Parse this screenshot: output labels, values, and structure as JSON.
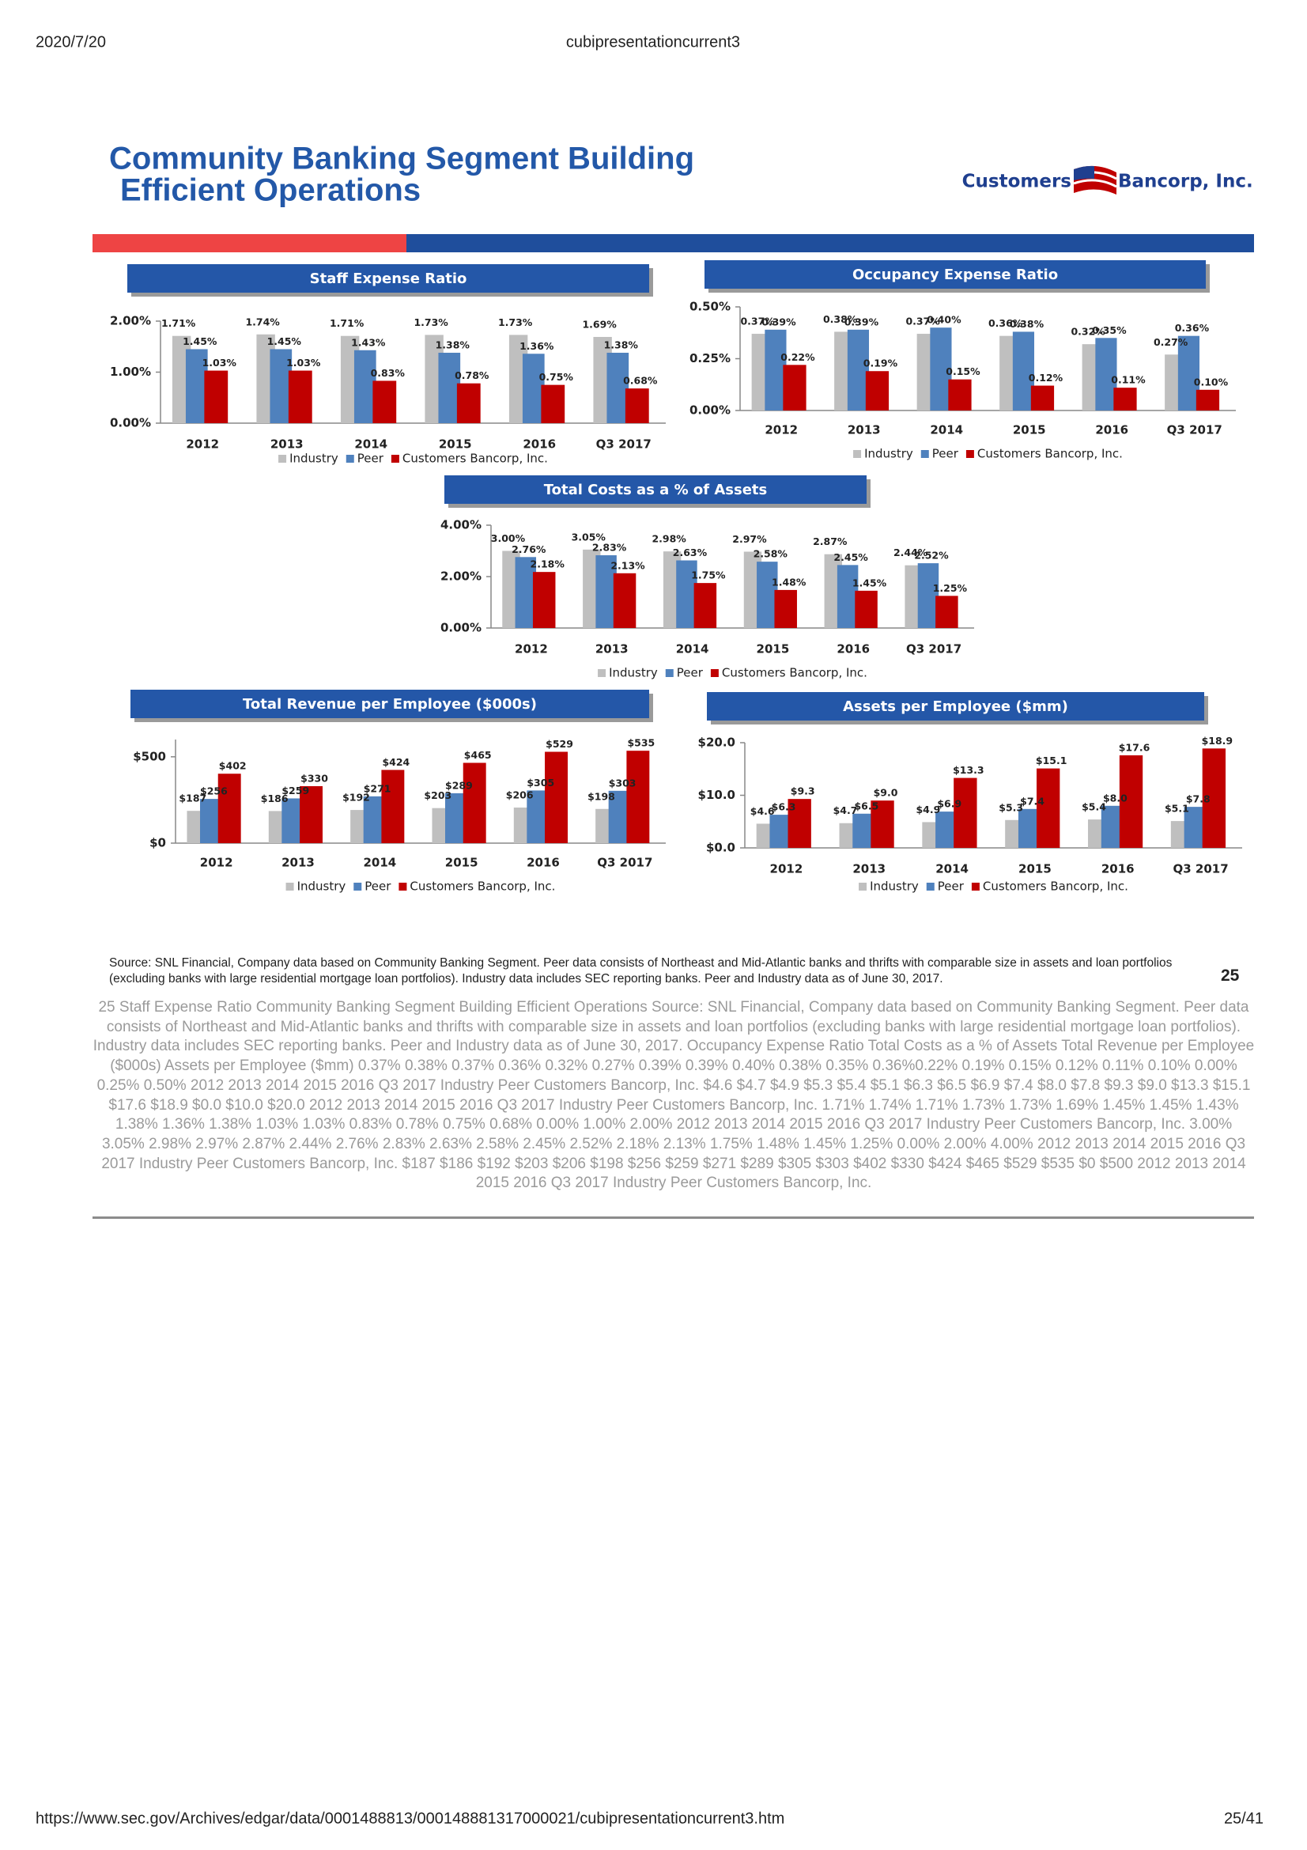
{
  "header": {
    "date": "2020/7/20",
    "doc": "cubipresentationcurrent3"
  },
  "slide": {
    "title": [
      "Community Banking Segment Building",
      "Efficient Operations"
    ],
    "logo": [
      "Customers",
      "Bancorp, Inc."
    ],
    "source": "Source: SNL Financial, Company data based on Community Banking Segment. Peer data consists of Northeast and Mid-Atlantic banks and thrifts with comparable size in assets and loan portfolios (excluding banks with large residential mortgage loan portfolios). Industry data includes SEC reporting banks.  Peer and Industry data as of June 30, 2017.",
    "page_number": "25"
  },
  "chart_data": [
    {
      "type": "bar",
      "title": "Staff Expense Ratio",
      "categories": [
        "2012",
        "2013",
        "2014",
        "2015",
        "2016",
        "Q3 2017"
      ],
      "series": [
        {
          "name": "Industry",
          "color": "#bfbfbf",
          "values": [
            1.71,
            1.74,
            1.71,
            1.73,
            1.73,
            1.69
          ],
          "value_labels": [
            "1.71%",
            "1.74%",
            "1.71%",
            "1.73%",
            "1.73%",
            "1.69%"
          ]
        },
        {
          "name": "Peer",
          "color": "#4f81bd",
          "values": [
            1.45,
            1.45,
            1.43,
            1.38,
            1.36,
            1.38
          ],
          "value_labels": [
            "1.45%",
            "1.45%",
            "1.43%",
            "1.38%",
            "1.36%",
            "1.38%"
          ]
        },
        {
          "name": "Customers Bancorp, Inc.",
          "color": "#c00000",
          "values": [
            1.03,
            1.03,
            0.83,
            0.78,
            0.75,
            0.68
          ],
          "value_labels": [
            "1.03%",
            "1.03%",
            "0.83%",
            "0.78%",
            "0.75%",
            "0.68%"
          ]
        }
      ],
      "ylim": [
        0,
        2
      ],
      "yticks": [
        {
          "value": 0,
          "label": "0.00%"
        },
        {
          "value": 1,
          "label": "1.00%"
        },
        {
          "value": 2,
          "label": "2.00%"
        }
      ]
    },
    {
      "type": "bar",
      "title": "Occupancy Expense Ratio",
      "categories": [
        "2012",
        "2013",
        "2014",
        "2015",
        "2016",
        "Q3 2017"
      ],
      "series": [
        {
          "name": "Industry",
          "color": "#bfbfbf",
          "values": [
            0.37,
            0.38,
            0.37,
            0.36,
            0.32,
            0.27
          ],
          "value_labels": [
            "0.37%",
            "0.38%",
            "0.37%",
            "0.36%",
            "0.32%",
            "0.27%"
          ]
        },
        {
          "name": "Peer",
          "color": "#4f81bd",
          "values": [
            0.39,
            0.39,
            0.4,
            0.38,
            0.35,
            0.36
          ],
          "value_labels": [
            "0.39%",
            "0.39%",
            "0.40%",
            "0.38%",
            "0.35%",
            "0.36%"
          ]
        },
        {
          "name": "Customers Bancorp, Inc.",
          "color": "#c00000",
          "values": [
            0.22,
            0.19,
            0.15,
            0.12,
            0.11,
            0.1
          ],
          "value_labels": [
            "0.22%",
            "0.19%",
            "0.15%",
            "0.12%",
            "0.11%",
            "0.10%"
          ]
        }
      ],
      "ylim": [
        0,
        0.5
      ],
      "yticks": [
        {
          "value": 0,
          "label": "0.00%"
        },
        {
          "value": 0.25,
          "label": "0.25%"
        },
        {
          "value": 0.5,
          "label": "0.50%"
        }
      ]
    },
    {
      "type": "bar",
      "title": "Total Costs as a % of Assets",
      "categories": [
        "2012",
        "2013",
        "2014",
        "2015",
        "2016",
        "Q3 2017"
      ],
      "series": [
        {
          "name": "Industry",
          "color": "#bfbfbf",
          "values": [
            3.0,
            3.05,
            2.98,
            2.97,
            2.87,
            2.44
          ],
          "value_labels": [
            "3.00%",
            "3.05%",
            "2.98%",
            "2.97%",
            "2.87%",
            "2.44%"
          ]
        },
        {
          "name": "Peer",
          "color": "#4f81bd",
          "values": [
            2.76,
            2.83,
            2.63,
            2.58,
            2.45,
            2.52
          ],
          "value_labels": [
            "2.76%",
            "2.83%",
            "2.63%",
            "2.58%",
            "2.45%",
            "2.52%"
          ]
        },
        {
          "name": "Customers Bancorp, Inc.",
          "color": "#c00000",
          "values": [
            2.18,
            2.13,
            1.75,
            1.48,
            1.45,
            1.25
          ],
          "value_labels": [
            "2.18%",
            "2.13%",
            "1.75%",
            "1.48%",
            "1.45%",
            "1.25%"
          ]
        }
      ],
      "ylim": [
        0,
        4
      ],
      "yticks": [
        {
          "value": 0,
          "label": "0.00%"
        },
        {
          "value": 2,
          "label": "2.00%"
        },
        {
          "value": 4,
          "label": "4.00%"
        }
      ]
    },
    {
      "type": "bar",
      "title": "Total Revenue per Employee ($000s)",
      "categories": [
        "2012",
        "2013",
        "2014",
        "2015",
        "2016",
        "Q3 2017"
      ],
      "series": [
        {
          "name": "Industry",
          "color": "#bfbfbf",
          "values": [
            187,
            186,
            192,
            203,
            206,
            198
          ],
          "value_labels": [
            "$187",
            "$186",
            "$192",
            "$203",
            "$206",
            "$198"
          ]
        },
        {
          "name": "Peer",
          "color": "#4f81bd",
          "values": [
            256,
            259,
            271,
            289,
            305,
            303
          ],
          "value_labels": [
            "$256",
            "$259",
            "$271",
            "$289",
            "$305",
            "$303"
          ]
        },
        {
          "name": "Customers Bancorp, Inc.",
          "color": "#c00000",
          "values": [
            402,
            330,
            424,
            465,
            529,
            535
          ],
          "value_labels": [
            "$402",
            "$330",
            "$424",
            "$465",
            "$529",
            "$535"
          ]
        }
      ],
      "ylim": [
        0,
        600
      ],
      "yticks": [
        {
          "value": 0,
          "label": "$0"
        },
        {
          "value": 500,
          "label": "$500"
        }
      ]
    },
    {
      "type": "bar",
      "title": "Assets per Employee ($mm)",
      "categories": [
        "2012",
        "2013",
        "2014",
        "2015",
        "2016",
        "Q3 2017"
      ],
      "series": [
        {
          "name": "Industry",
          "color": "#bfbfbf",
          "values": [
            4.6,
            4.7,
            4.9,
            5.3,
            5.4,
            5.1
          ],
          "value_labels": [
            "$4.6",
            "$4.7",
            "$4.9",
            "$5.3",
            "$5.4",
            "$5.1"
          ]
        },
        {
          "name": "Peer",
          "color": "#4f81bd",
          "values": [
            6.3,
            6.5,
            6.9,
            7.4,
            8.0,
            7.8
          ],
          "value_labels": [
            "$6.3",
            "$6.5",
            "$6.9",
            "$7.4",
            "$8.0",
            "$7.8"
          ]
        },
        {
          "name": "Customers Bancorp, Inc.",
          "color": "#c00000",
          "values": [
            9.3,
            9.0,
            13.3,
            15.1,
            17.6,
            18.9
          ],
          "value_labels": [
            "$9.3",
            "$9.0",
            "$13.3",
            "$15.1",
            "$17.6",
            "$18.9"
          ]
        }
      ],
      "ylim": [
        0,
        20
      ],
      "yticks": [
        {
          "value": 0,
          "label": "$0.0"
        },
        {
          "value": 10,
          "label": "$10.0"
        },
        {
          "value": 20,
          "label": "$20.0"
        }
      ]
    }
  ],
  "text_layer": "25  Staff Expense Ratio  Community Banking Segment Building  Efficient Operations  Source: SNL Financial, Company data based on Community Banking Segment.  Peer data consists of Northeast and Mid-Atlantic banks and thrifts with comparable size in assets and  loan portfolios (excluding banks with large residential mortgage loan portfolios). Industry data includes SEC reporting banks. Peer and Industry data as of June 30, 2017.  Occupancy Expense Ratio  Total Costs as a % of Assets  Total Revenue per Employee ($000s) Assets per Employee ($mm)  0.37% 0.38% 0.37% 0.36% 0.32% 0.27% 0.39% 0.39% 0.40% 0.38% 0.35% 0.36%0.22% 0.19% 0.15% 0.12% 0.11% 0.10% 0.00% 0.25% 0.50% 2012 2013 2014 2015 2016 Q3 2017 Industry Peer Customers Bancorp, Inc. $4.6 $4.7 $4.9 $5.3 $5.4 $5.1 $6.3 $6.5 $6.9 $7.4 $8.0 $7.8 $9.3 $9.0 $13.3 $15.1 $17.6 $18.9 $0.0 $10.0 $20.0 2012 2013 2014 2015 2016 Q3 2017 Industry Peer Customers Bancorp, Inc. 1.71% 1.74% 1.71% 1.73% 1.73% 1.69% 1.45% 1.45% 1.43% 1.38% 1.36% 1.38% 1.03% 1.03% 0.83% 0.78% 0.75% 0.68% 0.00% 1.00% 2.00% 2012 2013 2014 2015 2016 Q3 2017 Industry Peer Customers Bancorp, Inc. 3.00% 3.05% 2.98% 2.97% 2.87% 2.44% 2.76% 2.83% 2.63% 2.58% 2.45% 2.52% 2.18% 2.13% 1.75% 1.48% 1.45% 1.25% 0.00% 2.00% 4.00% 2012 2013 2014 2015 2016 Q3 2017 Industry Peer Customers Bancorp, Inc. $187 $186 $192 $203 $206 $198 $256 $259 $271 $289 $305 $303 $402 $330 $424 $465 $529 $535 $0 $500 2012 2013 2014 2015 2016 Q3 2017 Industry Peer Customers Bancorp, Inc.",
  "footer": {
    "url": "https://www.sec.gov/Archives/edgar/data/0001488813/000148881317000021/cubipresentationcurrent3.htm",
    "page": "25/41"
  }
}
